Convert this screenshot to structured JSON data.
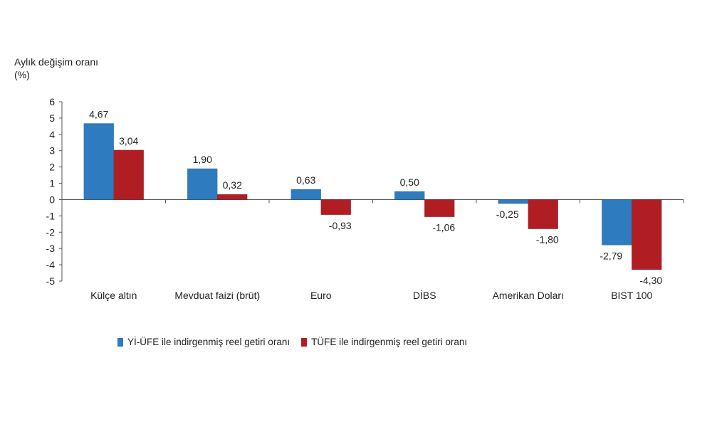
{
  "chart_data": {
    "type": "bar",
    "ylabel": "Aylık değişim oranı (%)",
    "ylim": [
      -5,
      6
    ],
    "yticks": [
      "6",
      "5",
      "4",
      "3",
      "2",
      "1",
      "0",
      "-1",
      "-2",
      "-3",
      "-4",
      "-5"
    ],
    "categories": [
      "Külçe altın",
      "Mevduat faizi (brüt)",
      "Euro",
      "DİBS",
      "Amerikan Doları",
      "BIST 100"
    ],
    "series": [
      {
        "name": "Yİ-ÜFE ile indirgenmiş reel getiri oranı",
        "color": "#2e7bbf",
        "values": [
          4.67,
          1.9,
          0.63,
          0.5,
          -0.25,
          -2.79
        ],
        "labels": [
          "4,67",
          "1,90",
          "0,63",
          "0,50",
          "-0,25",
          "-2,79"
        ]
      },
      {
        "name": "TÜFE ile indirgenmiş reel getiri oranı",
        "color": "#b01e24",
        "values": [
          3.04,
          0.32,
          -0.93,
          -1.06,
          -1.8,
          -4.3
        ],
        "labels": [
          "3,04",
          "0,32",
          "-0,93",
          "-1,06",
          "-1,80",
          "-4,30"
        ]
      }
    ],
    "grid": false,
    "legend_position": "bottom"
  }
}
